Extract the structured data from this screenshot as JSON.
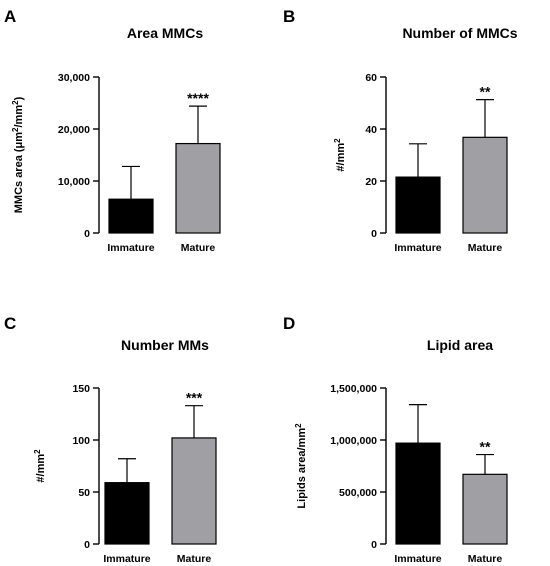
{
  "chart_data": [
    {
      "type": "bar",
      "panel_label": "A",
      "title": "Area MMCs",
      "ylabel_parts": [
        "MMCs area (",
        "μm",
        "2",
        "/mm",
        "2",
        ")"
      ],
      "categories": [
        "Immature",
        "Mature"
      ],
      "values": [
        6500,
        17200
      ],
      "errors": [
        6300,
        7200
      ],
      "significance": [
        "",
        "****"
      ],
      "colors": [
        "#000000",
        "#a0a0a4"
      ],
      "ylim": [
        0,
        30000
      ],
      "yticks": [
        0,
        10000,
        20000,
        30000
      ],
      "ytick_labels": [
        "0",
        "10,000",
        "20,000",
        "30,000"
      ]
    },
    {
      "type": "bar",
      "panel_label": "B",
      "title": "Number of MMCs",
      "ylabel_parts": [
        "#/mm",
        "2"
      ],
      "categories": [
        "Immature",
        "Mature"
      ],
      "values": [
        21.5,
        36.8
      ],
      "errors": [
        12.8,
        14.5
      ],
      "significance": [
        "",
        "**"
      ],
      "colors": [
        "#000000",
        "#a0a0a4"
      ],
      "ylim": [
        0,
        60
      ],
      "yticks": [
        0,
        20,
        40,
        60
      ],
      "ytick_labels": [
        "0",
        "20",
        "40",
        "60"
      ]
    },
    {
      "type": "bar",
      "panel_label": "C",
      "title": "Number MMs",
      "ylabel_parts": [
        "#/mm",
        "2"
      ],
      "categories": [
        "Immature",
        "Mature"
      ],
      "values": [
        59,
        102
      ],
      "errors": [
        23,
        31
      ],
      "significance": [
        "",
        "***"
      ],
      "colors": [
        "#000000",
        "#a0a0a4"
      ],
      "ylim": [
        0,
        150
      ],
      "yticks": [
        0,
        50,
        100,
        150
      ],
      "ytick_labels": [
        "0",
        "50",
        "100",
        "150"
      ]
    },
    {
      "type": "bar",
      "panel_label": "D",
      "title": "Lipid area",
      "ylabel_parts": [
        "Lipids area/mm",
        "2"
      ],
      "categories": [
        "Immature",
        "Mature"
      ],
      "values": [
        970000,
        670000
      ],
      "errors": [
        370000,
        190000
      ],
      "significance": [
        "",
        "**"
      ],
      "colors": [
        "#000000",
        "#a0a0a4"
      ],
      "ylim": [
        0,
        1500000
      ],
      "yticks": [
        0,
        500000,
        1000000,
        1500000
      ],
      "ytick_labels": [
        "0",
        "500,000",
        "1,000,000",
        "1,500,000"
      ]
    }
  ]
}
